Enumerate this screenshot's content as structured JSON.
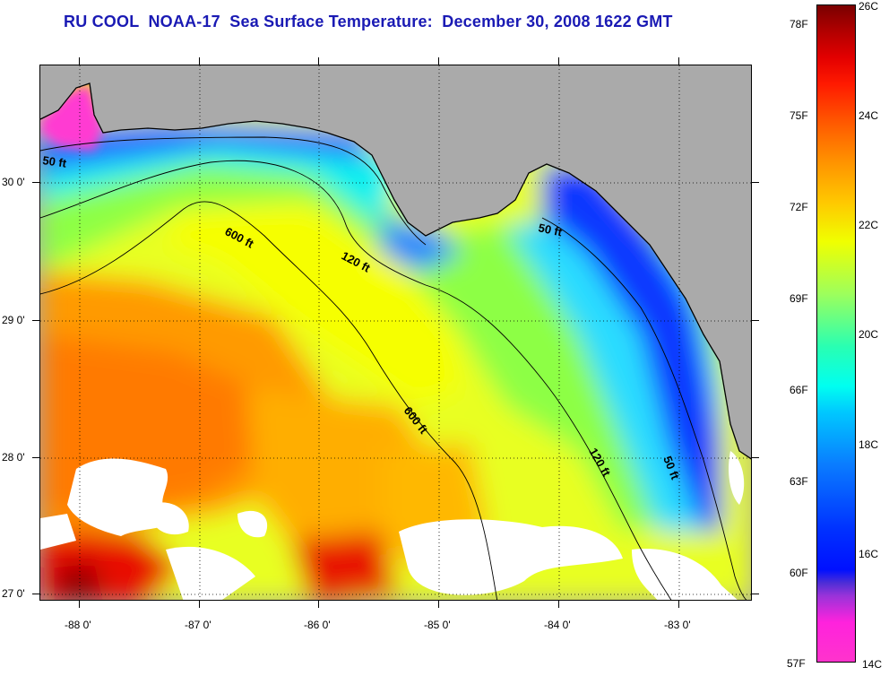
{
  "title": "RU COOL  NOAA-17  Sea Surface Temperature:  December 30, 2008 1622 GMT",
  "longitude_labels": [
    "-88 0'",
    "-87 0'",
    "-86 0'",
    "-85 0'",
    "-84 0'",
    "-83 0'"
  ],
  "latitude_labels": [
    "30 0'",
    "29 0'",
    "28 0'",
    "27 0'"
  ],
  "isobath_labels": [
    "600 ft",
    "120 ft",
    "50 ft",
    "600 ft",
    "120 ft",
    "50 ft",
    "50 ft"
  ],
  "colorbar": {
    "fahrenheit_labels": [
      "78F",
      "75F",
      "72F",
      "69F",
      "66F",
      "63F",
      "60F",
      "57F"
    ],
    "celsius_labels": [
      "26C",
      "24C",
      "22C",
      "20C",
      "18C",
      "16C",
      "14C"
    ],
    "range_celsius": [
      14,
      26
    ],
    "colors": [
      "#ff33cc",
      "#9a33d9",
      "#0010ff",
      "#0a7cff",
      "#00c8ff",
      "#29ffb2",
      "#f0ff00",
      "#ff9400",
      "#ff1a00",
      "#7a0000"
    ]
  },
  "colors": {
    "land": "#aaaaaa",
    "cloud": "#ffffff",
    "title": "#1a1ab4"
  }
}
